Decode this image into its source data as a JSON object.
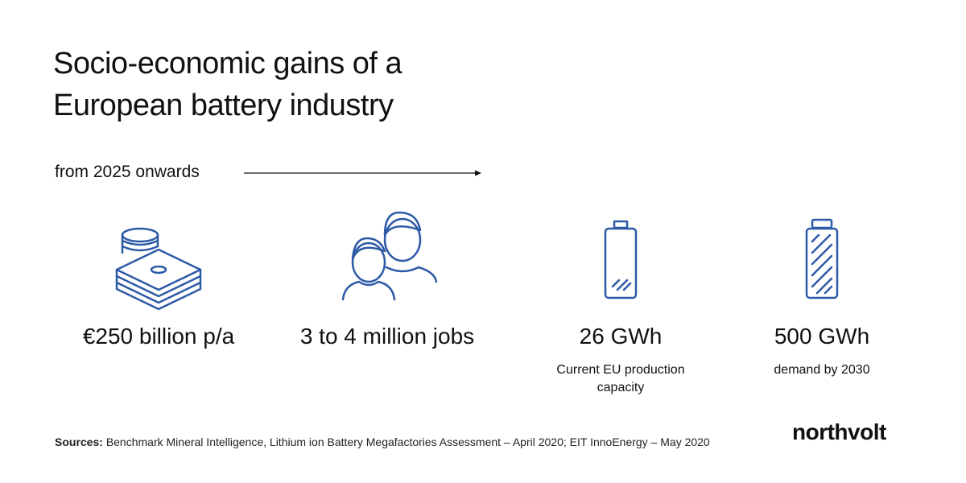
{
  "header": {
    "title_lines": [
      "Socio-economic gains of a",
      "European battery industry"
    ],
    "subtitle": "from 2025 onwards"
  },
  "items": [
    {
      "value": "€250 billion p/a"
    },
    {
      "value": "3 to 4 million jobs"
    },
    {
      "value": "26 GWh",
      "caption": "Current EU production capacity"
    },
    {
      "value": "500 GWh",
      "caption": "demand by 2030"
    }
  ],
  "footer": {
    "sources_label": "Sources:",
    "sources_text": "Benchmark Mineral Intelligence, Lithium ion Battery Megafactories Assessment – April 2020; EIT InnoEnergy – May 2020",
    "logo": "northvolt"
  }
}
